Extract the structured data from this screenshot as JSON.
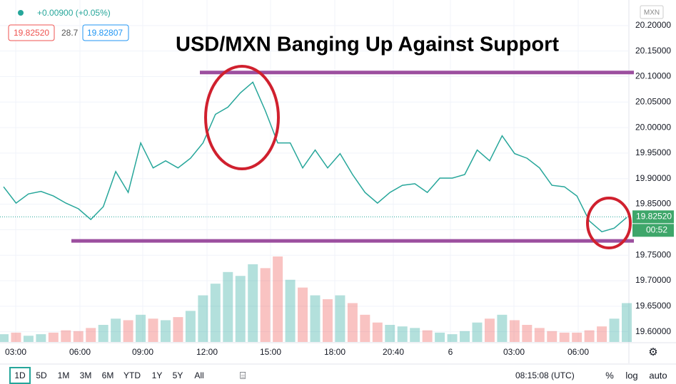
{
  "header": {
    "change": "+0.00900 (+0.05%)",
    "sell_price": "19.82520",
    "spread": "28.7",
    "buy_price": "19.82807"
  },
  "currency": "MXN",
  "chart_data": {
    "type": "line",
    "title": "USD/MXN Banging Up Against Support",
    "values": [
      19.884,
      19.852,
      19.87,
      19.875,
      19.866,
      19.852,
      19.841,
      19.82,
      19.845,
      19.914,
      19.873,
      19.97,
      19.921,
      19.935,
      19.921,
      19.94,
      19.97,
      20.026,
      20.04,
      20.068,
      20.089,
      20.033,
      19.97,
      19.97,
      19.921,
      19.956,
      19.921,
      19.949,
      19.908,
      19.873,
      19.852,
      19.873,
      19.887,
      19.89,
      19.873,
      19.901,
      19.901,
      19.908,
      19.956,
      19.935,
      19.984,
      19.949,
      19.94,
      19.921,
      19.887,
      19.884,
      19.866,
      19.817,
      19.796,
      19.803,
      19.824
    ],
    "volume": [
      10,
      12,
      8,
      10,
      12,
      15,
      14,
      18,
      22,
      30,
      28,
      35,
      30,
      28,
      32,
      40,
      60,
      75,
      90,
      85,
      100,
      95,
      110,
      80,
      70,
      60,
      55,
      60,
      50,
      35,
      25,
      22,
      20,
      18,
      15,
      12,
      10,
      14,
      25,
      30,
      35,
      28,
      22,
      18,
      14,
      12,
      12,
      15,
      20,
      30,
      50
    ],
    "up_color": "#26a69a",
    "down_color": "#ef5350",
    "ylim": [
      19.58,
      20.25
    ],
    "yticks": [
      {
        "value": 20.2,
        "label": "20.20000"
      },
      {
        "value": 20.15,
        "label": "20.15000"
      },
      {
        "value": 20.1,
        "label": "20.10000"
      },
      {
        "value": 20.05,
        "label": "20.05000"
      },
      {
        "value": 20.0,
        "label": "20.00000"
      },
      {
        "value": 19.95,
        "label": "19.95000"
      },
      {
        "value": 19.9,
        "label": "19.90000"
      },
      {
        "value": 19.85,
        "label": "19.85000"
      },
      {
        "value": 19.8,
        "label": "19.80000"
      },
      {
        "value": 19.75,
        "label": "19.75000"
      },
      {
        "value": 19.7,
        "label": "19.70000"
      },
      {
        "value": 19.65,
        "label": "19.65000"
      },
      {
        "value": 19.6,
        "label": "19.60000"
      }
    ],
    "x_labels": [
      "03:00",
      "06:00",
      "09:00",
      "12:00",
      "15:00",
      "18:00",
      "20:40",
      "6",
      "03:00",
      "06:00"
    ],
    "resistance": 20.108,
    "support": 19.778,
    "last_price": 19.8252,
    "last_price_label": "19.82520",
    "countdown": "00:52"
  },
  "toolbar": {
    "ranges": [
      "1D",
      "5D",
      "1M",
      "3M",
      "6M",
      "YTD",
      "1Y",
      "5Y",
      "All"
    ],
    "clock": "08:15:08 (UTC)",
    "options": [
      "%",
      "log",
      "auto"
    ]
  }
}
